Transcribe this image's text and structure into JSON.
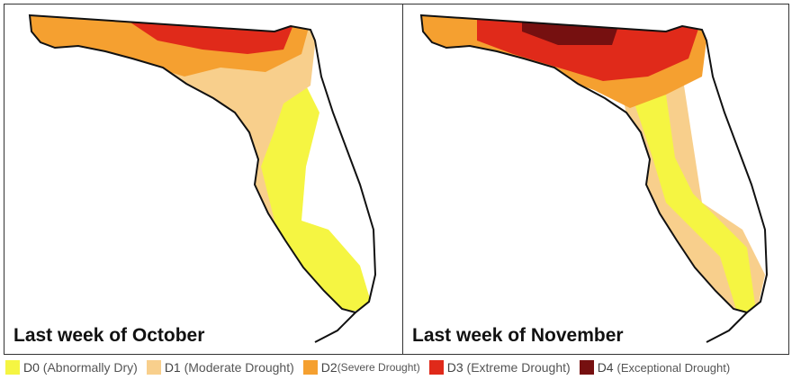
{
  "panels": [
    {
      "caption": "Last week of October"
    },
    {
      "caption": "Last week of November"
    }
  ],
  "legend": [
    {
      "code": "D0",
      "label": "(Abnormally Dry)",
      "color": "#f5f542"
    },
    {
      "code": "D1",
      "label": "(Moderate Drought)",
      "color": "#f8cf8c"
    },
    {
      "code": "D2",
      "label": "(Severe Drought)",
      "color": "#f5a030"
    },
    {
      "code": "D3",
      "label": "(Extreme Drought)",
      "color": "#e02a1a"
    },
    {
      "code": "D4",
      "label": "(Exceptional Drought)",
      "color": "#761010"
    }
  ]
}
